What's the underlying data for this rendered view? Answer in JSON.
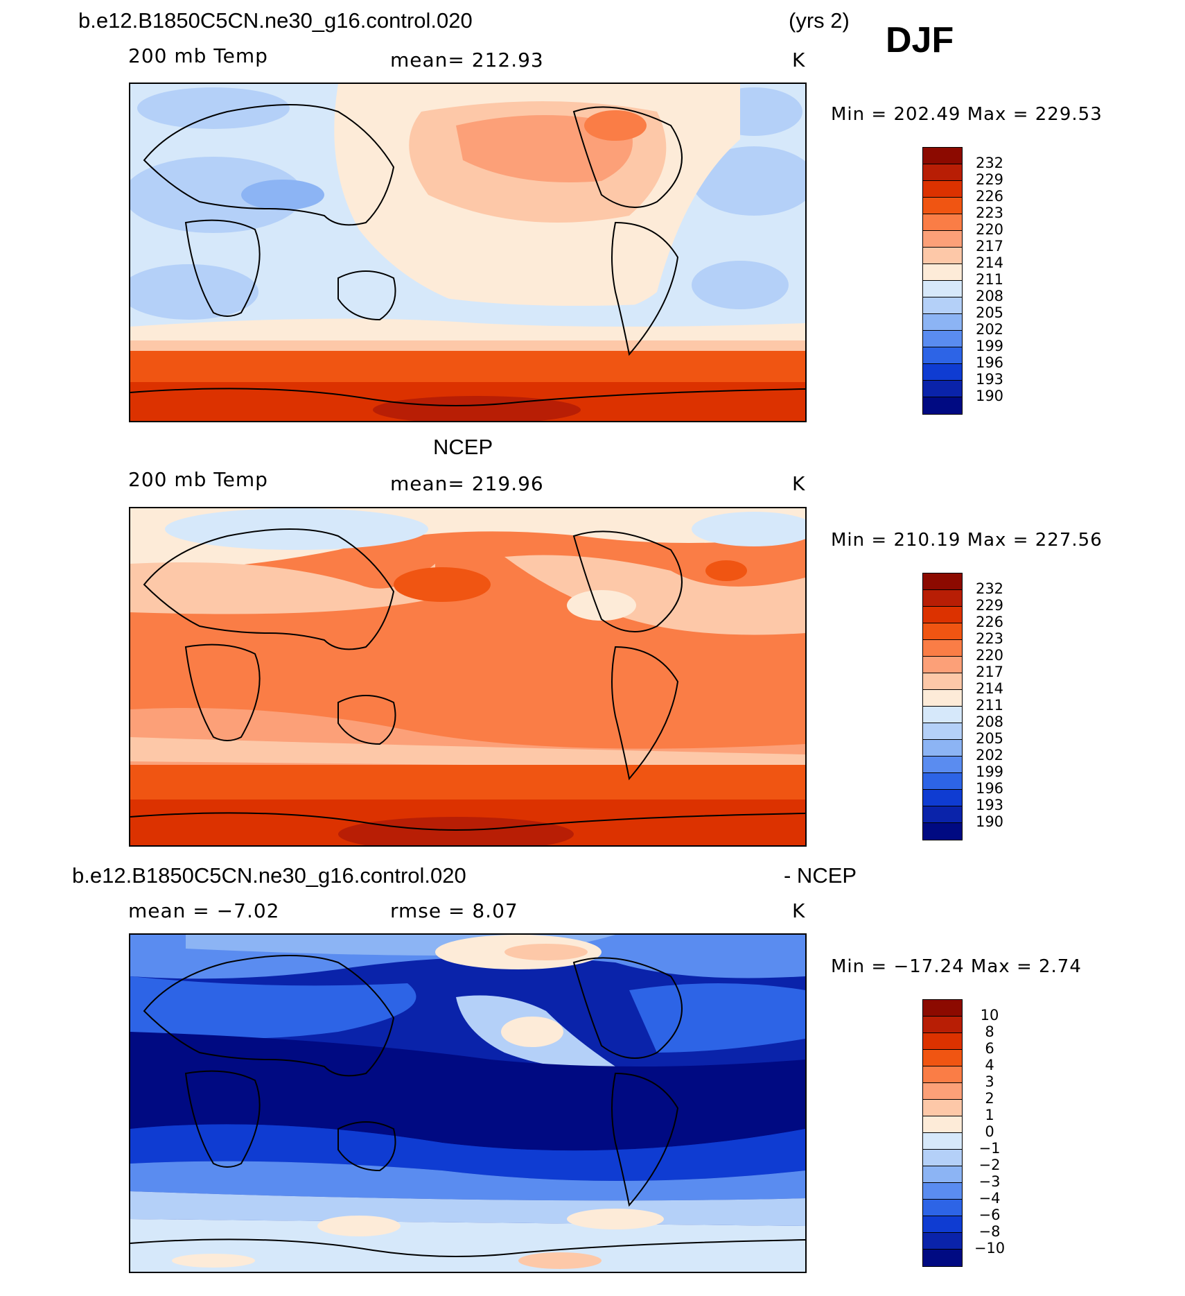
{
  "header": {
    "case_name": "b.e12.B1850C5CN.ne30_g16.control.020",
    "years": "(yrs 2)",
    "season": "DJF"
  },
  "panels": [
    {
      "id": "model",
      "variable": "200 mb Temp",
      "mean": "mean= 212.93",
      "units": "K",
      "minmax": "Min  =  202.49  Max  =  229.53",
      "scale": "temp"
    },
    {
      "id": "obs",
      "title": "NCEP",
      "variable": "200 mb Temp",
      "mean": "mean= 219.96",
      "units": "K",
      "minmax": "Min  =  210.19  Max  =  227.56",
      "scale": "temp"
    },
    {
      "id": "diff",
      "title_left": "b.e12.B1850C5CN.ne30_g16.control.020",
      "title_right": "- NCEP",
      "mean": "mean  =    −7.02",
      "rmse": "rmse  =     8.07",
      "units": "K",
      "minmax": "Min  =  −17.24  Max  =     2.74",
      "scale": "diff"
    }
  ],
  "colorbars": {
    "temp": {
      "labels": [
        "232",
        "229",
        "226",
        "223",
        "220",
        "217",
        "214",
        "211",
        "208",
        "205",
        "202",
        "199",
        "196",
        "193",
        "190"
      ],
      "colors": [
        "#8c0a00",
        "#b81e05",
        "#dc3200",
        "#f05512",
        "#fa7d46",
        "#fca078",
        "#fdc8a8",
        "#fdebd8",
        "#d6e8fa",
        "#b4d0f8",
        "#8cb4f4",
        "#5a8cf0",
        "#2d64e6",
        "#0f3cd2",
        "#0a23aa",
        "#000a82"
      ]
    },
    "diff": {
      "labels": [
        "10",
        "8",
        "6",
        "4",
        "3",
        "2",
        "1",
        "0",
        "−1",
        "−2",
        "−3",
        "−4",
        "−6",
        "−8",
        "−10"
      ],
      "colors": [
        "#8c0a00",
        "#b81e05",
        "#dc3200",
        "#f05512",
        "#fa7d46",
        "#fca078",
        "#fdc8a8",
        "#fdebd8",
        "#d6e8fa",
        "#b4d0f8",
        "#8cb4f4",
        "#5a8cf0",
        "#2d64e6",
        "#0f3cd2",
        "#0a23aa",
        "#000a82"
      ]
    }
  }
}
